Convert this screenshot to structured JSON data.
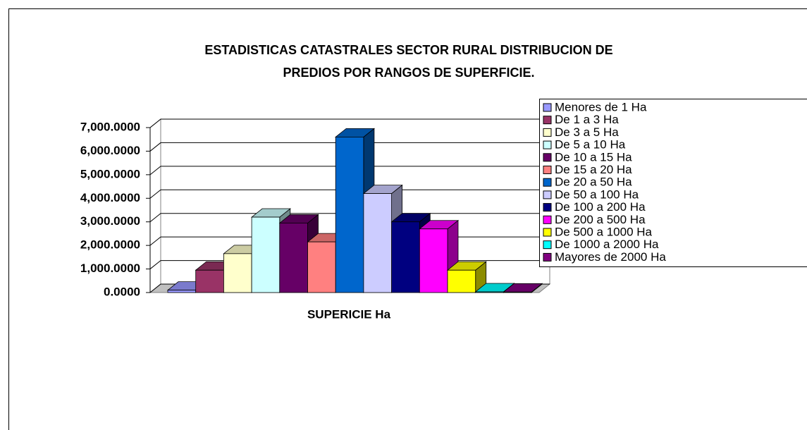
{
  "chart_data": {
    "type": "bar3d",
    "title": [
      "ESTADISTICAS  CATASTRALES SECTOR  RURAL DISTRIBUCION DE",
      "PREDIOS  POR RANGOS DE SUPERFICIE."
    ],
    "categories": [
      "SUPERICIE  Ha"
    ],
    "ylim": [
      0,
      7000
    ],
    "yticks": [
      {
        "value": 0,
        "label": "0.0000"
      },
      {
        "value": 1000,
        "label": "1,000.0000"
      },
      {
        "value": 2000,
        "label": "2,000.0000"
      },
      {
        "value": 3000,
        "label": "3,000.0000"
      },
      {
        "value": 4000,
        "label": "4,000.0000"
      },
      {
        "value": 5000,
        "label": "5,000.0000"
      },
      {
        "value": 6000,
        "label": "6,000.0000"
      },
      {
        "value": 7000,
        "label": "7,000.0000"
      }
    ],
    "grid": true,
    "legend": "right",
    "series": [
      {
        "name": "Menores de 1 Ha",
        "color": "#9999ff",
        "values": [
          100
        ]
      },
      {
        "name": "De 1 a 3 Ha",
        "color": "#993366",
        "values": [
          950
        ]
      },
      {
        "name": "De 3 a 5 Ha",
        "color": "#ffffcc",
        "values": [
          1650
        ]
      },
      {
        "name": "De 5 a 10 Ha",
        "color": "#ccffff",
        "values": [
          3200
        ]
      },
      {
        "name": "De 10 a 15 Ha",
        "color": "#660066",
        "values": [
          2950
        ]
      },
      {
        "name": "De 15 a 20 Ha",
        "color": "#ff8080",
        "values": [
          2150
        ]
      },
      {
        "name": "De 20 a 50 Ha",
        "color": "#0066cc",
        "values": [
          6600
        ]
      },
      {
        "name": "De 50 a 100 Ha",
        "color": "#ccccff",
        "values": [
          4200
        ]
      },
      {
        "name": "De 100 a 200 Ha",
        "color": "#000080",
        "values": [
          3000
        ]
      },
      {
        "name": "De 200 a 500 Ha",
        "color": "#ff00ff",
        "values": [
          2700
        ]
      },
      {
        "name": "De 500 a 1000 Ha",
        "color": "#ffff00",
        "values": [
          950
        ]
      },
      {
        "name": "De 1000 a 2000 Ha",
        "color": "#00ffff",
        "values": [
          30
        ]
      },
      {
        "name": "Mayores de 2000 Ha",
        "color": "#800080",
        "values": [
          20
        ]
      }
    ]
  }
}
